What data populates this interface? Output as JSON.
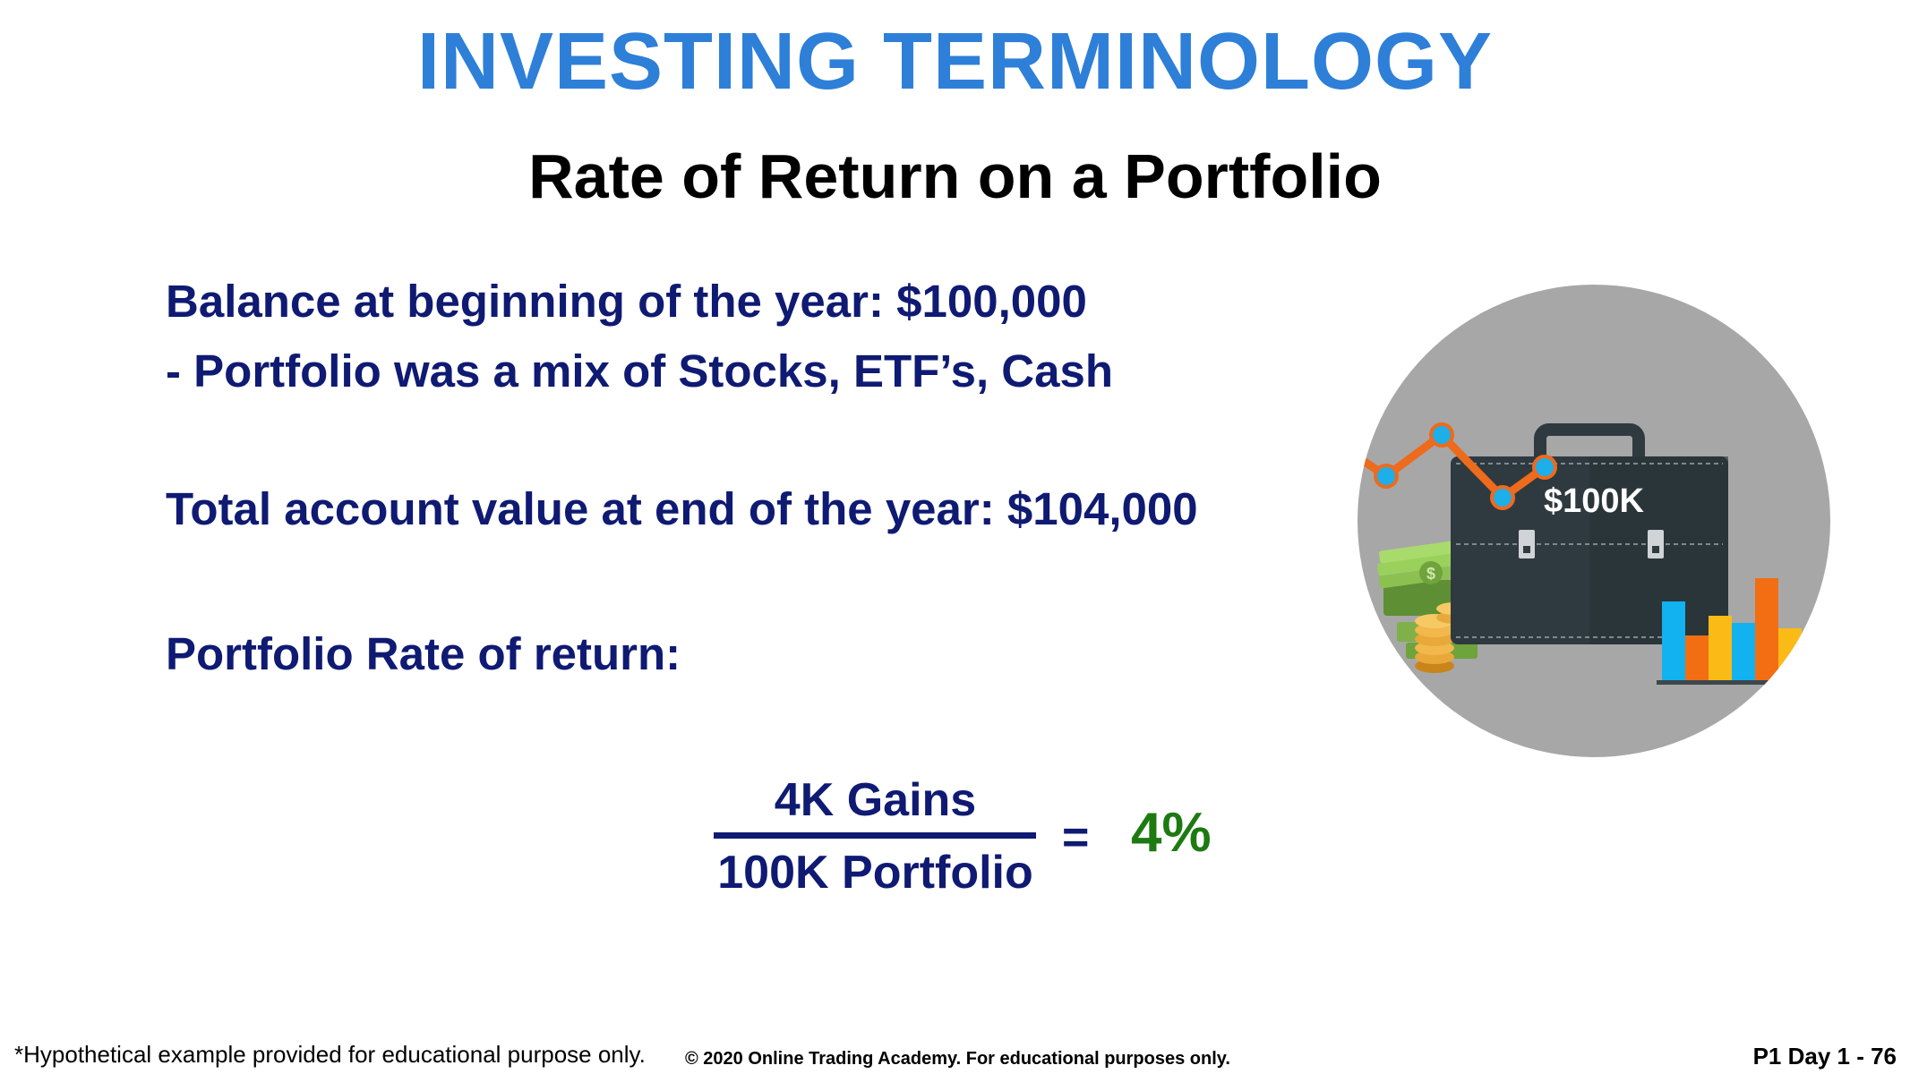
{
  "slide": {
    "title": "INVESTING TERMINOLOGY",
    "subtitle": "Rate of Return on a Portfolio",
    "lines": [
      "Balance at beginning of the year: $100,000",
      "- Portfolio was a mix of Stocks, ETF’s, Cash",
      "Total account value at end of the year: $104,000",
      "Portfolio Rate of return:"
    ],
    "formula": {
      "numerator": "4K Gains",
      "denominator": "100K Portfolio",
      "equals": "=",
      "result": "4%"
    },
    "illustration": {
      "briefcase_label": "$100K",
      "dollar_sign": "$"
    },
    "footer": {
      "footnote": "*Hypothetical example provided for educational purpose only.",
      "copyright": "© 2020 Online Trading Academy. For educational purposes only.",
      "page": "P1 Day 1 - 76"
    }
  },
  "colors": {
    "title": "#2e7fd8",
    "body_text": "#0f1a73",
    "result": "#1d7a12",
    "circle": "#a7a7a7",
    "briefcase": "#2f3a40",
    "line_orange": "#ee6a1c",
    "dot_blue": "#1eaee8",
    "bar_blue": "#12b2f0",
    "bar_orange": "#f36e12",
    "bar_yellow": "#fbbb17"
  }
}
